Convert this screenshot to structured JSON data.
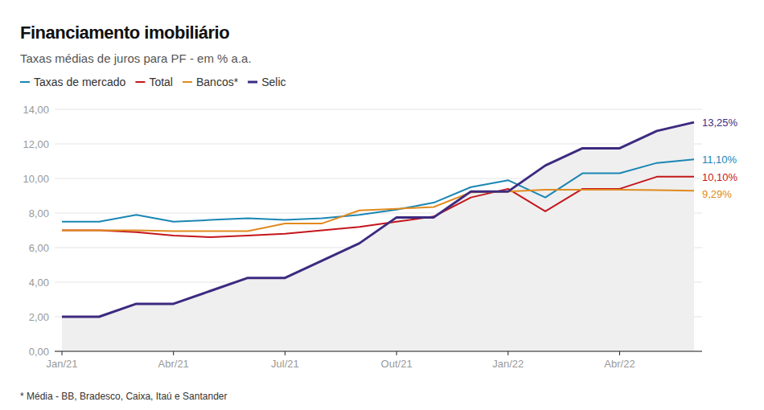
{
  "chart_data": {
    "type": "line",
    "title": "Financiamento imobiliário",
    "subtitle": "Taxas médias de juros para PF - em % a.a.",
    "note": "* Média - BB, Bradesco, Caixa, Itaú e Santander",
    "categories": [
      "Jan/21",
      null,
      null,
      "Abr/21",
      null,
      null,
      "Jul/21",
      null,
      null,
      "Out/21",
      null,
      null,
      "Jan/22",
      null,
      null,
      "Abr/22",
      null,
      null
    ],
    "series": [
      {
        "name": "Taxas de mercado",
        "color": "#1a86b4",
        "values": [
          7.5,
          7.5,
          7.9,
          7.5,
          7.6,
          7.7,
          7.6,
          7.7,
          7.9,
          8.2,
          8.6,
          9.5,
          9.9,
          8.9,
          10.3,
          10.3,
          10.9,
          11.1
        ],
        "value_labels": [
          null,
          null,
          null,
          null,
          null,
          null,
          null,
          null,
          null,
          null,
          null,
          null,
          null,
          null,
          null,
          null,
          null,
          "11,10%"
        ]
      },
      {
        "name": "Total",
        "color": "#c4161c",
        "values": [
          7.0,
          7.0,
          6.9,
          6.7,
          6.6,
          6.7,
          6.8,
          7.0,
          7.2,
          7.5,
          7.8,
          8.9,
          9.4,
          8.1,
          9.4,
          9.4,
          10.1,
          10.1
        ],
        "value_labels": [
          null,
          null,
          null,
          null,
          null,
          null,
          null,
          null,
          null,
          null,
          null,
          null,
          null,
          null,
          null,
          null,
          null,
          "10,10%"
        ]
      },
      {
        "name": "Bancos*",
        "color": "#e08a1e",
        "values": [
          7.0,
          7.0,
          7.0,
          6.95,
          6.95,
          6.95,
          7.4,
          7.4,
          8.15,
          8.25,
          8.35,
          9.2,
          9.25,
          9.35,
          9.35,
          9.35,
          9.33,
          9.29
        ],
        "value_labels": [
          null,
          null,
          null,
          null,
          null,
          null,
          null,
          null,
          null,
          null,
          null,
          null,
          null,
          null,
          null,
          null,
          null,
          "9,29%"
        ]
      },
      {
        "name": "Selic",
        "color": "#3d2a80",
        "type": "area",
        "values": [
          2.0,
          2.0,
          2.75,
          2.75,
          3.5,
          4.25,
          4.25,
          5.25,
          6.25,
          7.75,
          7.75,
          9.25,
          9.25,
          10.75,
          11.75,
          11.75,
          12.75,
          13.25
        ],
        "value_labels": [
          null,
          null,
          null,
          null,
          null,
          null,
          null,
          null,
          null,
          null,
          null,
          null,
          null,
          null,
          null,
          null,
          null,
          "13,25%"
        ]
      }
    ],
    "ylim": [
      0,
      14
    ],
    "yticks": [
      {
        "value": 0,
        "label": "0,00"
      },
      {
        "value": 2,
        "label": "2,00"
      },
      {
        "value": 4,
        "label": "4,00"
      },
      {
        "value": 6,
        "label": "6,00"
      },
      {
        "value": 8,
        "label": "8,00"
      },
      {
        "value": 10,
        "label": "10,00"
      },
      {
        "value": 12,
        "label": "12,00"
      },
      {
        "value": 14,
        "label": "14,00"
      }
    ],
    "grid": true,
    "legend": "top-left"
  }
}
